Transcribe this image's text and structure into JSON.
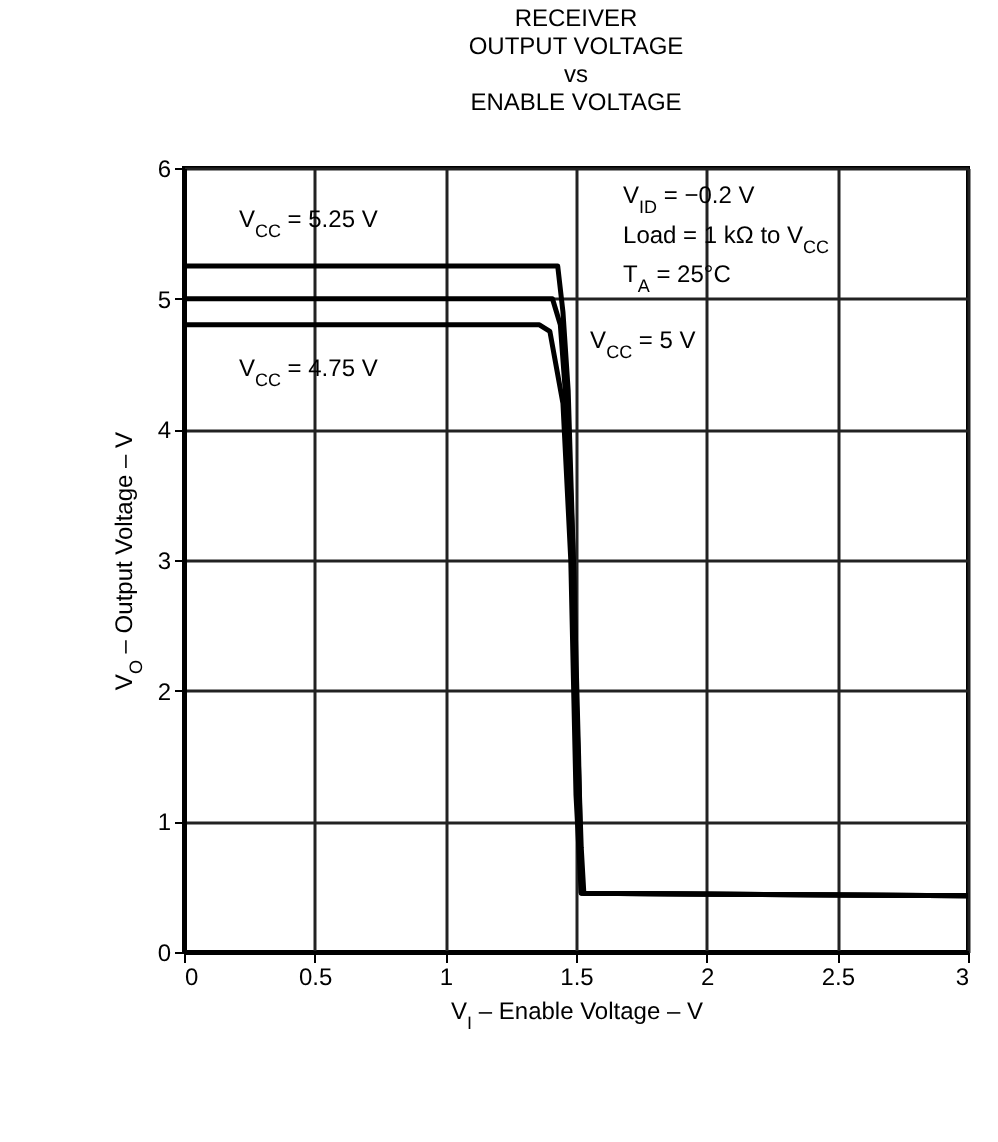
{
  "chart_data": {
    "type": "line",
    "title": "RECEIVER\nOUTPUT VOLTAGE\nvs\nENABLE VOLTAGE",
    "xlabel": "V$_{I}$ – Enable Voltage – V",
    "ylabel": "V$_{O}$ – Output Voltage – V",
    "xlim": [
      0,
      3
    ],
    "ylim": [
      0,
      6
    ],
    "xticks": [
      0,
      0.5,
      1,
      1.5,
      2,
      2.5,
      3
    ],
    "yticks": [
      0,
      1,
      2,
      3,
      4,
      5,
      6
    ],
    "grid": true,
    "annotations": [
      "V$_{ID}$ = −0.2 V",
      "Load = 1 kΩ to V$_{CC}$",
      "T$_{A}$ = 25°C"
    ],
    "series": [
      {
        "name": "V$_{CC}$ = 5.25 V",
        "color": "#000000",
        "x": [
          0,
          1.43,
          1.45,
          1.47,
          1.49,
          1.5,
          1.52,
          1.53,
          3
        ],
        "values": [
          5.25,
          5.25,
          4.9,
          4.3,
          3,
          2,
          0.8,
          0.45,
          0.43
        ]
      },
      {
        "name": "V$_{CC}$ = 5 V",
        "color": "#000000",
        "x": [
          0,
          1.41,
          1.44,
          1.47,
          1.49,
          1.51,
          1.52,
          3
        ],
        "values": [
          5,
          5,
          4.8,
          4,
          3,
          1.5,
          0.45,
          0.43
        ]
      },
      {
        "name": "V$_{CC}$ = 4.75 V",
        "color": "#000000",
        "x": [
          0,
          1.36,
          1.4,
          1.45,
          1.48,
          1.5,
          1.52,
          3
        ],
        "values": [
          4.8,
          4.8,
          4.75,
          4.2,
          3,
          1.2,
          0.45,
          0.43
        ]
      }
    ]
  }
}
